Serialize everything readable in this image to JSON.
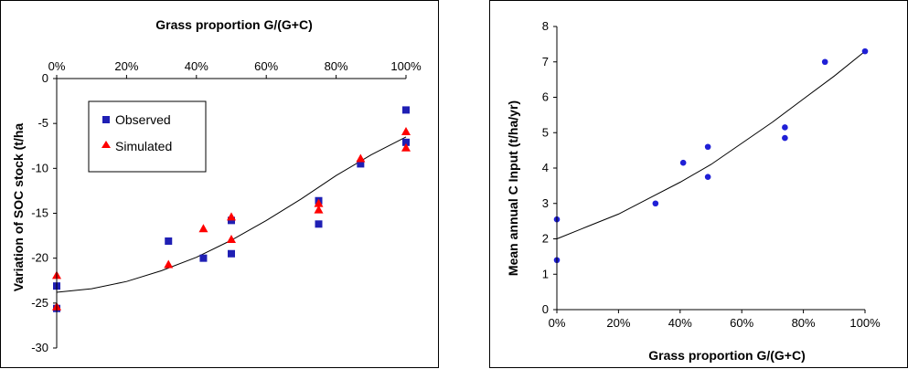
{
  "chart_data": [
    {
      "type": "scatter",
      "xlabel": "Grass proportion  G/(G+C)",
      "xaxis_position": "top",
      "ylabel": "Variation of SOC stock  (t/ha",
      "xlim": [
        0,
        100
      ],
      "ylim": [
        -30,
        0
      ],
      "xticks": [
        "0%",
        "20%",
        "40%",
        "60%",
        "80%",
        "100%"
      ],
      "yticks": [
        "0",
        "-5",
        "-10",
        "-15",
        "-20",
        "-25",
        "-30"
      ],
      "legend": {
        "position": "top-left",
        "entries": [
          "Observed",
          "Simulated"
        ]
      },
      "series": [
        {
          "name": "Observed",
          "marker": "square",
          "color": "#1f1fb4",
          "points": [
            [
              0,
              -23.1
            ],
            [
              0,
              -25.6
            ],
            [
              32,
              -18.1
            ],
            [
              42,
              -20.0
            ],
            [
              50,
              -15.8
            ],
            [
              50,
              -19.5
            ],
            [
              75,
              -13.6
            ],
            [
              75,
              -16.2
            ],
            [
              87,
              -9.5
            ],
            [
              100,
              -3.5
            ],
            [
              100,
              -7.1
            ]
          ]
        },
        {
          "name": "Simulated",
          "marker": "triangle",
          "color": "#ff0000",
          "points": [
            [
              0,
              -21.9
            ],
            [
              0,
              -25.4
            ],
            [
              32,
              -20.7
            ],
            [
              42,
              -16.7
            ],
            [
              50,
              -15.4
            ],
            [
              50,
              -17.9
            ],
            [
              75,
              -13.9
            ],
            [
              75,
              -14.6
            ],
            [
              87,
              -8.9
            ],
            [
              100,
              -5.9
            ],
            [
              100,
              -7.7
            ]
          ]
        }
      ],
      "trendline": [
        [
          0,
          -23.8
        ],
        [
          10,
          -23.4
        ],
        [
          20,
          -22.6
        ],
        [
          30,
          -21.4
        ],
        [
          40,
          -19.9
        ],
        [
          50,
          -18.0
        ],
        [
          60,
          -15.8
        ],
        [
          70,
          -13.4
        ],
        [
          80,
          -10.8
        ],
        [
          90,
          -8.5
        ],
        [
          100,
          -6.5
        ]
      ]
    },
    {
      "type": "scatter",
      "xlabel": "Grass proportion  G/(G+C)",
      "xaxis_position": "bottom",
      "ylabel": "Mean annual C Input  (t/ha/yr)",
      "xlim": [
        0,
        100
      ],
      "ylim": [
        0,
        8
      ],
      "xticks": [
        "0%",
        "20%",
        "40%",
        "60%",
        "80%",
        "100%"
      ],
      "yticks": [
        "0",
        "1",
        "2",
        "3",
        "4",
        "5",
        "6",
        "7",
        "8"
      ],
      "series": [
        {
          "marker": "circle",
          "color": "#1f1fd6",
          "points": [
            [
              0,
              1.4
            ],
            [
              0,
              2.55
            ],
            [
              32,
              3.0
            ],
            [
              41,
              4.15
            ],
            [
              49,
              3.75
            ],
            [
              49,
              4.6
            ],
            [
              74,
              4.85
            ],
            [
              74,
              5.15
            ],
            [
              87,
              7.0
            ],
            [
              100,
              7.3
            ]
          ]
        }
      ],
      "trendline": [
        [
          0,
          2.0
        ],
        [
          10,
          2.35
        ],
        [
          20,
          2.7
        ],
        [
          30,
          3.15
        ],
        [
          40,
          3.6
        ],
        [
          50,
          4.1
        ],
        [
          60,
          4.7
        ],
        [
          70,
          5.3
        ],
        [
          80,
          5.95
        ],
        [
          90,
          6.6
        ],
        [
          100,
          7.3
        ]
      ]
    }
  ]
}
